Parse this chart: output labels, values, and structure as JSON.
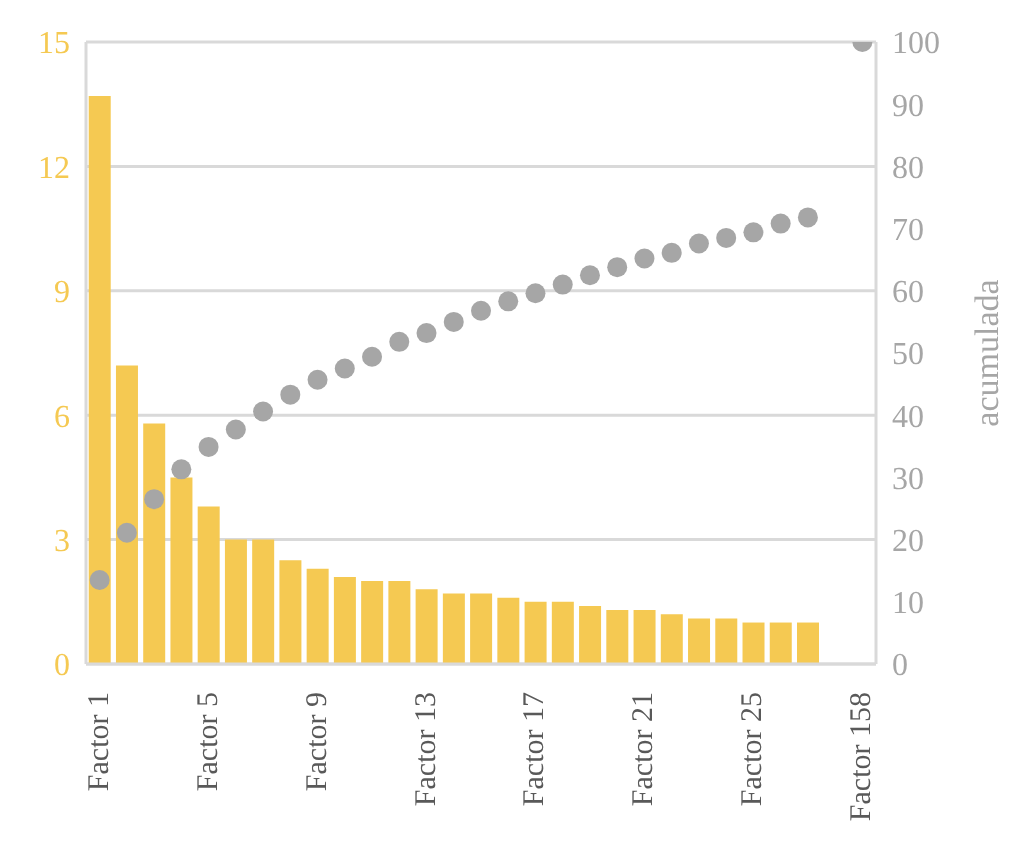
{
  "chart_data": {
    "type": "bar",
    "y2label": "acumulada",
    "categories": [
      "Factor 1",
      null,
      null,
      null,
      "Factor 5",
      null,
      null,
      null,
      "Factor 9",
      null,
      null,
      null,
      "Factor 13",
      null,
      null,
      null,
      "Factor 17",
      null,
      null,
      null,
      "Factor 21",
      null,
      null,
      null,
      "Factor 25",
      null,
      null,
      null,
      "Factor 158"
    ],
    "series": [
      {
        "color": "#f5c952",
        "values": [
          13.7,
          7.2,
          5.8,
          4.5,
          3.8,
          3.0,
          3.0,
          2.5,
          2.3,
          2.1,
          2.0,
          2.0,
          1.8,
          1.7,
          1.7,
          1.6,
          1.5,
          1.5,
          1.4,
          1.3,
          1.3,
          1.2,
          1.1,
          1.1,
          1.0,
          1.0,
          1.0,
          null,
          null
        ]
      },
      {
        "type": "scatter",
        "axis": "y2",
        "color": "#a6a6a6",
        "values": [
          13.5,
          21.1,
          26.5,
          31.3,
          34.9,
          37.7,
          40.6,
          43.3,
          45.7,
          47.5,
          49.4,
          51.8,
          53.2,
          55.0,
          56.8,
          58.3,
          59.6,
          61.0,
          62.5,
          63.8,
          65.2,
          66.1,
          67.6,
          68.5,
          69.4,
          70.8,
          71.8,
          null,
          100
        ]
      }
    ],
    "ylim": [
      0,
      15
    ],
    "yticks": [
      0,
      3,
      6,
      9,
      12,
      15
    ],
    "y2lim": [
      0,
      100
    ],
    "y2ticks": [
      0,
      10,
      20,
      30,
      40,
      50,
      60,
      70,
      80,
      90,
      100
    ],
    "grid": "y",
    "legend": false,
    "marker": "circle"
  }
}
